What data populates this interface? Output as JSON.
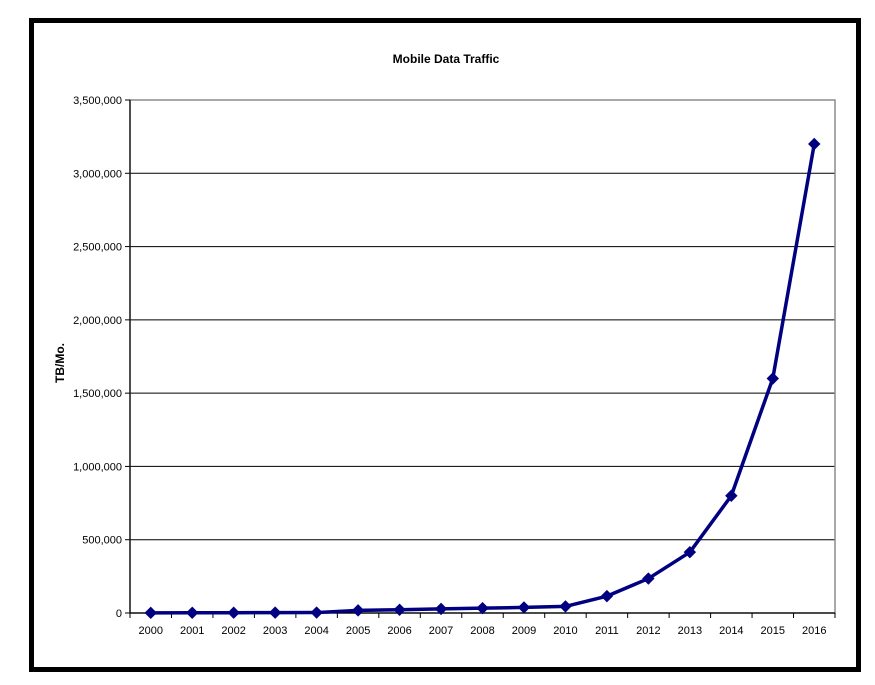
{
  "chart_data": {
    "type": "line",
    "title": "Mobile Data Traffic",
    "xlabel": "",
    "ylabel": "TB/Mo.",
    "ylim": [
      0,
      3500000
    ],
    "y_ticks": [
      0,
      500000,
      1000000,
      1500000,
      2000000,
      2500000,
      3000000,
      3500000
    ],
    "y_tick_labels": [
      "0",
      "500,000",
      "1,000,000",
      "1,500,000",
      "2,000,000",
      "2,500,000",
      "3,000,000",
      "3,500,000"
    ],
    "categories": [
      "2000",
      "2001",
      "2002",
      "2003",
      "2004",
      "2005",
      "2006",
      "2007",
      "2008",
      "2009",
      "2010",
      "2011",
      "2012",
      "2013",
      "2014",
      "2015",
      "2016"
    ],
    "series": [
      {
        "values": [
          1000,
          1500,
          2000,
          2500,
          3000,
          18000,
          22000,
          28000,
          33000,
          38000,
          45000,
          115000,
          235000,
          415000,
          800000,
          1600000,
          3200000
        ]
      }
    ],
    "grid": true,
    "legend": "none",
    "line_color": "#000080"
  }
}
